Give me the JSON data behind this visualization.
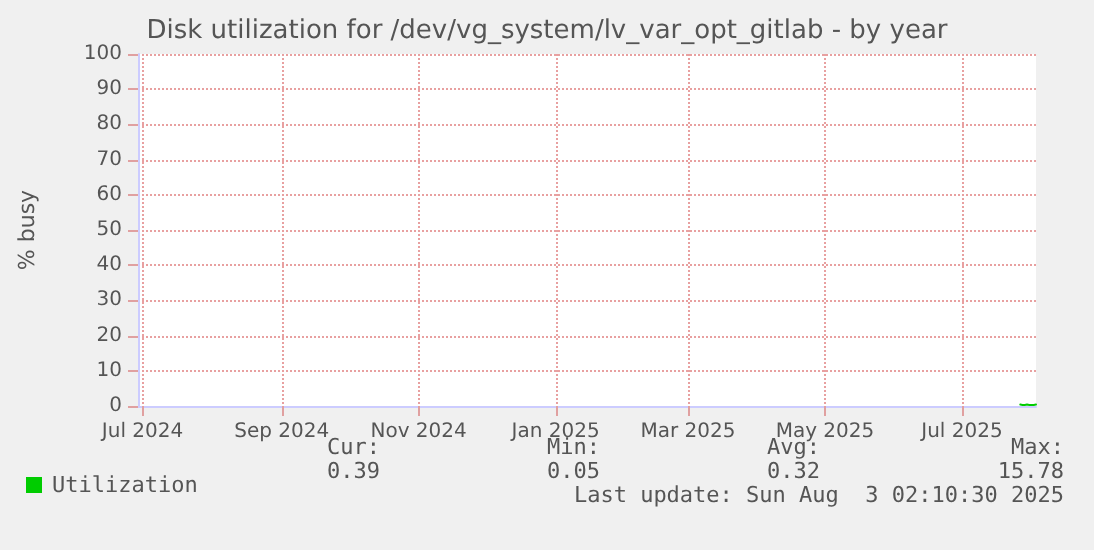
{
  "chart_data": {
    "type": "line",
    "title": "Disk utilization for /dev/vg_system/lv_var_opt_gitlab - by year",
    "ylabel": "% busy",
    "x": [
      "2025-07-27",
      "2025-07-28",
      "2025-07-29",
      "2025-07-30",
      "2025-07-31",
      "2025-08-01",
      "2025-08-02",
      "2025-08-03"
    ],
    "series": [
      {
        "name": "Utilization",
        "color": "#00cc00",
        "values": [
          0.4,
          0.3,
          0.3,
          0.4,
          0.3,
          0.3,
          0.3,
          0.4
        ]
      }
    ],
    "xlim": [
      "2024-06-29",
      "2025-08-03"
    ],
    "xticks": [
      {
        "value": "2024-07-01",
        "label": "Jul 2024"
      },
      {
        "value": "2024-09-01",
        "label": "Sep 2024"
      },
      {
        "value": "2024-11-01",
        "label": "Nov 2024"
      },
      {
        "value": "2025-01-01",
        "label": "Jan 2025"
      },
      {
        "value": "2025-03-01",
        "label": "Mar 2025"
      },
      {
        "value": "2025-05-01",
        "label": "May 2025"
      },
      {
        "value": "2025-07-01",
        "label": "Jul 2025"
      }
    ],
    "ylim": [
      0,
      100
    ],
    "yticks": [
      0,
      10,
      20,
      30,
      40,
      50,
      60,
      70,
      80,
      90,
      100
    ],
    "grid": true,
    "legend": "bottom left",
    "marker": "none",
    "line_style": "solid",
    "annotations": [
      "Cur:",
      "Min:",
      "Avg:",
      "Max:",
      "0.39",
      "0.05",
      "0.32",
      "15.78",
      "Last update: Sun Aug  3 02:10:30 2025"
    ]
  }
}
